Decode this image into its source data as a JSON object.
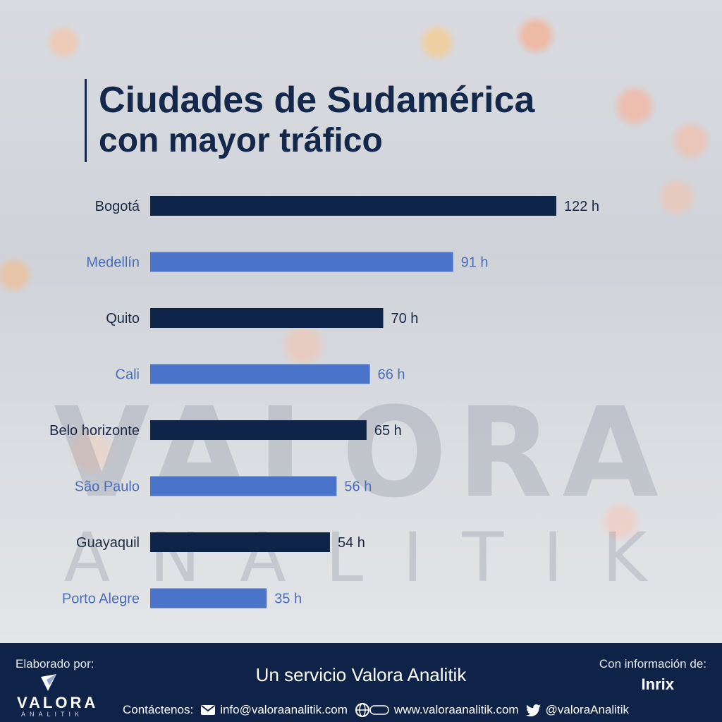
{
  "title": "Ciudades de Sudamérica",
  "subtitle": "con mayor tráfico",
  "chart_data": {
    "type": "bar",
    "orientation": "horizontal",
    "categories": [
      "Bogotá",
      "Medellín",
      "Quito",
      "Cali",
      "Belo horizonte",
      "São Paulo",
      "Guayaquil",
      "Porto Alegre"
    ],
    "values": [
      122,
      91,
      70,
      66,
      65,
      56,
      54,
      35
    ],
    "value_labels": [
      "122 h",
      "91 h",
      "70 h",
      "66 h",
      "65 h",
      "56 h",
      "54 h",
      "35 h"
    ],
    "colors": [
      "#0e2449",
      "#4a74c9",
      "#0e2449",
      "#4a74c9",
      "#0e2449",
      "#4a74c9",
      "#0e2449",
      "#4a74c9"
    ],
    "label_colors": [
      "#1b2a44",
      "#4a6db8",
      "#1b2a44",
      "#4a6db8",
      "#1b2a44",
      "#4a6db8",
      "#1b2a44",
      "#4a6db8"
    ],
    "xlabel": "",
    "ylabel": "",
    "xlim": [
      0,
      122
    ],
    "grid": false
  },
  "watermark": {
    "brand": "VALORA",
    "sub": "ANALITIK"
  },
  "footer": {
    "made_by": "Elaborado por:",
    "logo_text": "VALORA",
    "logo_sub": "ANALITIK",
    "service": "Un servicio Valora Analitik",
    "info_label": "Con información de:",
    "source": "Inrix",
    "contact_label": "Contáctenos:",
    "email": "info@valoraanalitik.com",
    "website": "www.valoraanalitik.com",
    "twitter": "@valoraAnalitik",
    "icons": [
      "mail-icon",
      "globe-icon",
      "twitter-icon"
    ]
  },
  "colors": {
    "navy": "#0e2449",
    "blue": "#4a74c9",
    "footer_bg": "#0e2347"
  }
}
